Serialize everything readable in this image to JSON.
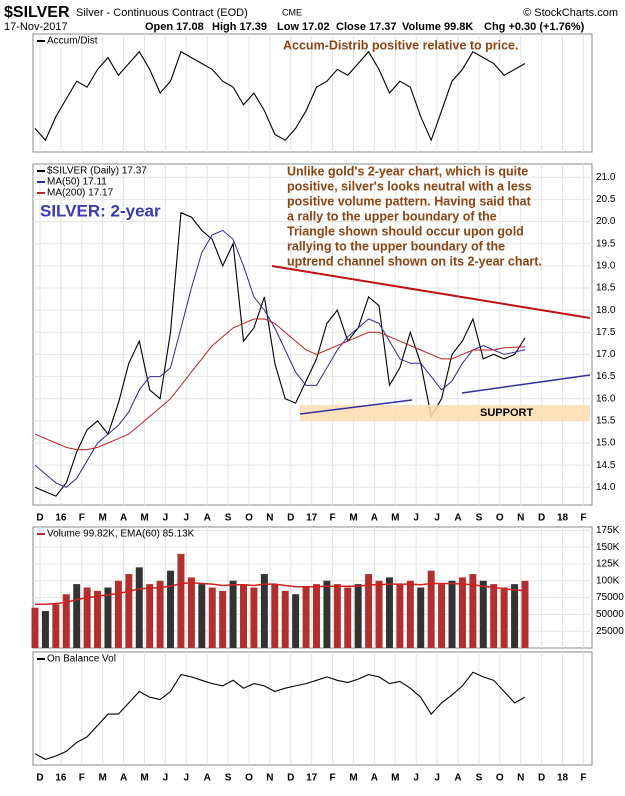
{
  "header": {
    "symbol": "$SILVER",
    "name": "Silver - Continuous Contract (EOD)",
    "exchange": "CME",
    "source": "© StockCharts.com",
    "date": "17-Nov-2017",
    "quote": [
      "Open 17.08",
      "High 17.39",
      "Low 17.02",
      "Close 17.37",
      "Volume 99.8K",
      "Chg +0.30 (+1.76%)"
    ]
  },
  "chart_data": [
    {
      "type": "line",
      "title": "Accum/Dist",
      "annotation": "Accum-Distrib positive relative to price.",
      "ylim": [
        0,
        100
      ],
      "color": "#000000",
      "values": [
        20,
        10,
        30,
        45,
        60,
        55,
        70,
        80,
        65,
        75,
        85,
        70,
        50,
        60,
        85,
        80,
        75,
        70,
        60,
        55,
        40,
        50,
        35,
        15,
        10,
        20,
        35,
        55,
        60,
        70,
        65,
        75,
        85,
        70,
        50,
        60,
        55,
        30,
        10,
        35,
        60,
        70,
        85,
        80,
        75,
        65,
        70,
        75
      ]
    },
    {
      "type": "line",
      "label": "SILVER: 2-year",
      "note": [
        "Unlike gold's 2-year chart, which is quite",
        "positive, silver's looks neutral with a less",
        "positive volume pattern. Having said that",
        "a rally to the upper boundary of the",
        "Triangle shown should occur upon gold",
        "rallying to the upper boundary of the",
        "uptrend channel shown on its 2-year chart."
      ],
      "support": "SUPPORT",
      "ylim": [
        13.6,
        21.3
      ],
      "yticks": [
        {
          "value": 14,
          "label": "14.0"
        },
        14.5,
        {
          "value": 15,
          "label": "15.0"
        },
        15.5,
        {
          "value": 16,
          "label": "16.0"
        },
        16.5,
        {
          "value": 17,
          "label": "17.0"
        },
        17.5,
        {
          "value": 18,
          "label": "18.0"
        },
        18.5,
        {
          "value": 19,
          "label": "19.0"
        },
        19.5,
        {
          "value": 20,
          "label": "20.0"
        },
        20.5,
        {
          "value": 21,
          "label": "21.0"
        }
      ],
      "xticks": [
        "D",
        "16",
        "F",
        "M",
        "A",
        "M",
        "J",
        "J",
        "A",
        "S",
        "O",
        "N",
        "D",
        "17",
        "F",
        "M",
        "A",
        "M",
        "J",
        "J",
        "A",
        "S",
        "O",
        "N",
        "D",
        "18",
        "F"
      ],
      "grid": true,
      "series": [
        {
          "name": "$SILVER (Daily) 17.37",
          "color": "#000000",
          "values": [
            14.0,
            13.9,
            13.8,
            14.1,
            14.8,
            15.3,
            15.5,
            15.2,
            15.9,
            16.8,
            17.3,
            16.2,
            16.0,
            17.5,
            20.2,
            20.1,
            19.8,
            19.6,
            19.0,
            19.5,
            17.3,
            17.6,
            18.3,
            16.8,
            16.0,
            15.9,
            16.4,
            16.9,
            17.7,
            18.0,
            17.3,
            17.6,
            18.3,
            18.1,
            16.3,
            16.7,
            17.5,
            16.8,
            15.6,
            16.0,
            17.0,
            17.3,
            17.8,
            16.9,
            17.0,
            16.9,
            17.0,
            17.37
          ]
        },
        {
          "name": "MA(50) 17.11",
          "color": "#2a2a9a",
          "values": [
            14.5,
            14.3,
            14.1,
            14.0,
            14.2,
            14.6,
            15.0,
            15.2,
            15.4,
            15.7,
            16.2,
            16.5,
            16.5,
            16.7,
            17.6,
            18.5,
            19.3,
            19.7,
            19.8,
            19.6,
            19.0,
            18.3,
            18.0,
            17.6,
            17.1,
            16.6,
            16.3,
            16.3,
            16.7,
            17.1,
            17.4,
            17.6,
            17.8,
            17.7,
            17.3,
            16.9,
            16.8,
            16.8,
            16.5,
            16.2,
            16.4,
            16.8,
            17.1,
            17.2,
            17.1,
            17.0,
            17.05,
            17.11
          ]
        },
        {
          "name": "MA(200) 17.17",
          "color": "#c02020",
          "values": [
            15.2,
            15.1,
            15.0,
            14.9,
            14.85,
            14.85,
            14.9,
            15.0,
            15.1,
            15.2,
            15.4,
            15.6,
            15.8,
            16.0,
            16.3,
            16.6,
            16.9,
            17.2,
            17.4,
            17.6,
            17.7,
            17.8,
            17.8,
            17.7,
            17.5,
            17.3,
            17.1,
            17.0,
            17.1,
            17.2,
            17.3,
            17.4,
            17.5,
            17.5,
            17.4,
            17.3,
            17.2,
            17.1,
            17.0,
            16.9,
            16.9,
            17.0,
            17.1,
            17.1,
            17.1,
            17.15,
            17.16,
            17.17
          ]
        }
      ]
    },
    {
      "type": "bar",
      "title": "Volume 99.82K, EMA(60) 85.13K",
      "ylim": [
        0,
        180000
      ],
      "yticks": [
        25000,
        50000,
        75000,
        {
          "value": 100000,
          "label": "100K"
        },
        {
          "value": 125000,
          "label": "125K"
        },
        {
          "value": 150000,
          "label": "150K"
        },
        {
          "value": 175000,
          "label": "175K"
        }
      ],
      "color": "#b03030",
      "ema_color": "#d02020",
      "values": [
        60000,
        55000,
        65000,
        80000,
        95000,
        90000,
        85000,
        90000,
        100000,
        110000,
        120000,
        95000,
        100000,
        115000,
        140000,
        105000,
        95000,
        90000,
        85000,
        100000,
        95000,
        90000,
        110000,
        95000,
        85000,
        80000,
        90000,
        95000,
        100000,
        95000,
        90000,
        95000,
        110000,
        100000,
        105000,
        95000,
        100000,
        90000,
        115000,
        95000,
        100000,
        105000,
        110000,
        100000,
        95000,
        90000,
        95000,
        99820
      ],
      "ema": [
        65000,
        65000,
        66000,
        68000,
        72000,
        75000,
        77000,
        79000,
        81000,
        84000,
        88000,
        89000,
        90000,
        92000,
        96000,
        97000,
        96000,
        95000,
        93000,
        94000,
        94000,
        93000,
        95000,
        95000,
        93000,
        91000,
        91000,
        91000,
        92000,
        92000,
        92000,
        92000,
        94000,
        94000,
        95000,
        95000,
        95000,
        94000,
        96000,
        96000,
        96000,
        95000,
        94000,
        92000,
        90000,
        88000,
        86500,
        85130
      ]
    },
    {
      "type": "line",
      "title": "On Balance Vol",
      "ylim": [
        0,
        100
      ],
      "color": "#000000",
      "xticks": [
        "D",
        "16",
        "F",
        "M",
        "A",
        "M",
        "J",
        "J",
        "A",
        "S",
        "O",
        "N",
        "D",
        "17",
        "F",
        "M",
        "A",
        "M",
        "J",
        "J",
        "A",
        "S",
        "O",
        "N",
        "D",
        "18",
        "F"
      ],
      "values": [
        10,
        5,
        8,
        12,
        20,
        25,
        35,
        45,
        45,
        55,
        65,
        60,
        58,
        65,
        80,
        78,
        75,
        72,
        70,
        75,
        68,
        72,
        70,
        65,
        68,
        70,
        72,
        75,
        78,
        75,
        73,
        76,
        80,
        78,
        72,
        74,
        68,
        60,
        45,
        55,
        62,
        70,
        82,
        78,
        75,
        65,
        55,
        60
      ]
    }
  ]
}
